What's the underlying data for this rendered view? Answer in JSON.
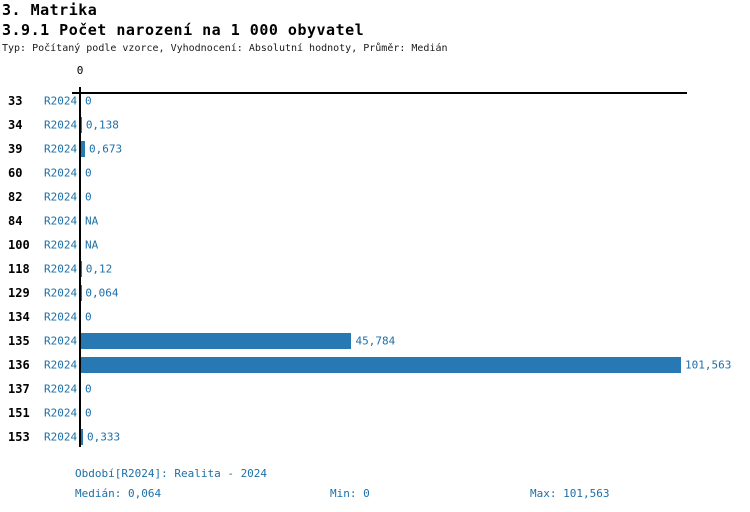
{
  "title": "3. Matrika",
  "subtitle": "3.9.1 Počet narození na 1 000 obyvatel",
  "meta": "Typ: Počítaný podle vzorce, Vyhodnocení: Absolutní hodnoty, Průměr: Medián",
  "chart_data": {
    "type": "bar",
    "orientation": "horizontal",
    "title": "3.9.1 Počet narození na 1 000 obyvatel",
    "series_label": "R2024",
    "axis_tick_label": "0",
    "categories": [
      "33",
      "34",
      "39",
      "60",
      "82",
      "84",
      "100",
      "118",
      "129",
      "134",
      "135",
      "136",
      "137",
      "151",
      "153"
    ],
    "values": [
      0,
      0.138,
      0.673,
      0,
      0,
      null,
      null,
      0.12,
      0.064,
      0,
      45.784,
      101.563,
      0,
      0,
      0.333
    ],
    "value_labels": [
      "0",
      "0,138",
      "0,673",
      "0",
      "0",
      "NA",
      "NA",
      "0,12",
      "0,064",
      "0",
      "45,784",
      "101,563",
      "0",
      "0",
      "0,333"
    ],
    "xlim": [
      0,
      101.563
    ],
    "grid": false,
    "legend": "none",
    "bar_color": "#2878b4",
    "label_color": "#1c6fa8",
    "axis_color": "#000000"
  },
  "footer": {
    "period": "Období[R2024]: Realita - 2024",
    "median": "Medián: 0,064",
    "min": "Min: 0",
    "max": "Max: 101,563"
  }
}
